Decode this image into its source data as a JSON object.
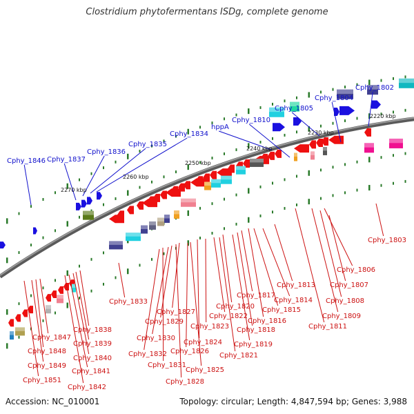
{
  "title": "Clostridium phytofermentans ISDg, complete genome",
  "accession": "Accession: NC_010001",
  "topology": "Topology: circular; Length: 4,847,594 bp; Genes: 3,988",
  "colors": {
    "backbone": "#707070",
    "forward_label": "#1010cc",
    "reverse_label": "#cc1010",
    "tick": "#2a7a2a"
  },
  "scale_labels": [
    "2220 kbp",
    "2230 kbp",
    "2240 kbp",
    "2250 kbp",
    "2260 kbp",
    "2270 kbp"
  ],
  "forward_genes": [
    "Cphy_1802",
    "Cphy_1804",
    "Cphy_1805",
    "Cphy_1810",
    "hppA",
    "Cphy_1834",
    "Cphy_1835",
    "Cphy_1836",
    "Cphy_1837",
    "Cphy_1846"
  ],
  "reverse_genes": [
    "Cphy_1803",
    "Cphy_1806",
    "Cphy_1807",
    "Cphy_1808",
    "Cphy_1809",
    "Cphy_1811",
    "Cphy_1813",
    "Cphy_1814",
    "Cphy_1815",
    "Cphy_1816",
    "Cphy_1817",
    "Cphy_1818",
    "Cphy_1819",
    "Cphy_1820",
    "Cphy_1821",
    "Cphy_1822",
    "Cphy_1823",
    "Cphy_1824",
    "Cphy_1825",
    "Cphy_1826",
    "Cphy_1827",
    "Cphy_1828",
    "Cphy_1829",
    "Cphy_1830",
    "Cphy_1831",
    "Cphy_1832",
    "Cphy_1833",
    "Cphy_1838",
    "Cphy_1839",
    "Cphy_1840",
    "Cphy_1841",
    "Cphy_1842",
    "Cphy_1847",
    "Cphy_1848",
    "Cphy_1849",
    "Cphy_1851"
  ]
}
